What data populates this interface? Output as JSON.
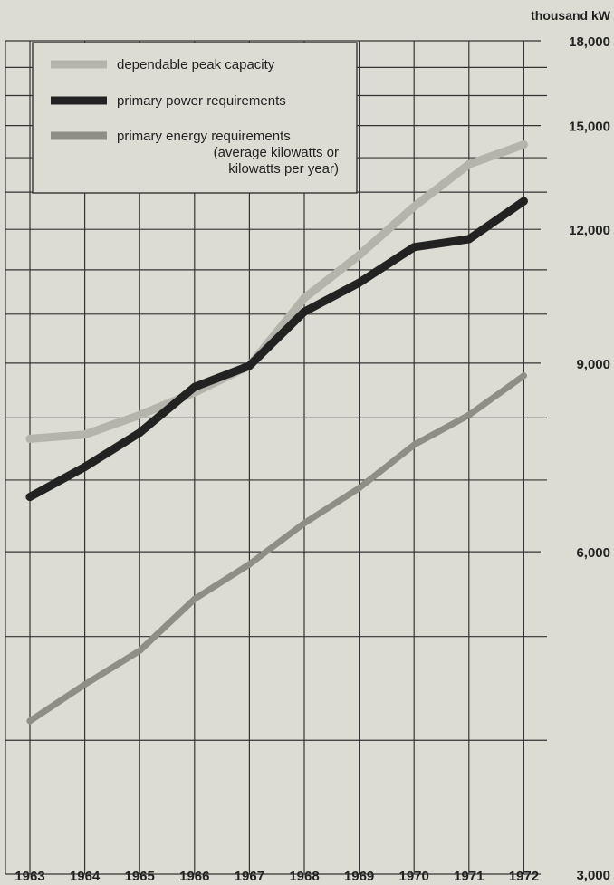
{
  "chart_data": {
    "type": "line",
    "x": [
      "1963",
      "1964",
      "1965",
      "1966",
      "1967",
      "1968",
      "1969",
      "1970",
      "1971",
      "1972"
    ],
    "unit_label": "thousand kW",
    "y_scale": "log",
    "ylim": [
      3000,
      18000
    ],
    "y_ticks": [
      "3,000",
      "6,000",
      "9,000",
      "12,000",
      "15,000",
      "18,000"
    ],
    "grid": true,
    "legend_position": "top-left",
    "series": [
      {
        "name": "dependable peak capacity",
        "color": "#b4b4ac",
        "values": [
          7650,
          7720,
          8050,
          8450,
          8950,
          10350,
          11350,
          12600,
          13800,
          14400
        ]
      },
      {
        "name": "primary power requirements",
        "color": "#222222",
        "values": [
          6750,
          7200,
          7750,
          8550,
          8950,
          10050,
          10700,
          11550,
          11750,
          12750
        ]
      },
      {
        "name": "primary energy requirements",
        "name_line2": "(average kilowatts or",
        "name_line3": "kilowatts per year)",
        "color": "#8e8e86",
        "values": [
          4170,
          4510,
          4850,
          5420,
          5840,
          6380,
          6880,
          7550,
          8050,
          8760
        ]
      }
    ]
  }
}
